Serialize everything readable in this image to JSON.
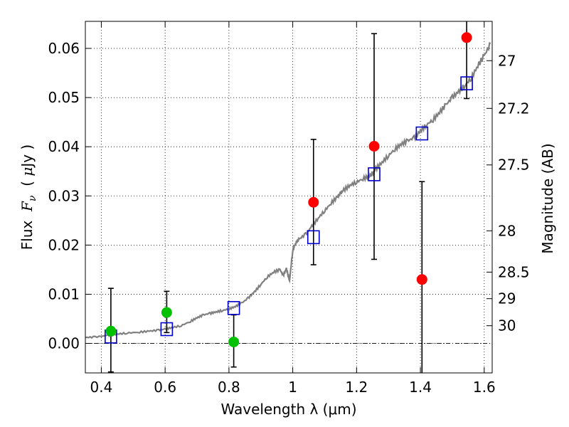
{
  "chart_data": {
    "type": "scatter",
    "xlabel": "Wavelength  λ (μm)",
    "ylabel": "Flux  F_ν  ( μJy )",
    "ylabel_parts": [
      "Flux  ",
      "F",
      "ν",
      "  ( ",
      "μ",
      "Jy )"
    ],
    "y2label": "Magnitude (AB)",
    "xlim": [
      0.35,
      1.625
    ],
    "ylim": [
      -0.006,
      0.0655
    ],
    "grid": true,
    "xticks": [
      0.4,
      0.6,
      0.8,
      1.0,
      1.2,
      1.4,
      1.6
    ],
    "xtick_labels": [
      "0.4",
      "0.6",
      "0.8",
      "1",
      "1.2",
      "1.4",
      "1.6"
    ],
    "yticks": [
      0.0,
      0.01,
      0.02,
      0.03,
      0.04,
      0.05,
      0.06
    ],
    "ytick_labels": [
      "0.00",
      "0.01",
      "0.02",
      "0.03",
      "0.04",
      "0.05",
      "0.06"
    ],
    "mag_ticks": [
      {
        "label": "27",
        "flux": 0.0575
      },
      {
        "label": "27.2",
        "flux": 0.0478
      },
      {
        "label": "27.5",
        "flux": 0.0363
      },
      {
        "label": "28",
        "flux": 0.0229
      },
      {
        "label": "28.5",
        "flux": 0.0145
      },
      {
        "label": "29",
        "flux": 0.0091
      },
      {
        "label": "30",
        "flux": 0.0036
      }
    ],
    "model_spectrum": {
      "color": "#808080",
      "x": [
        0.35,
        0.38,
        0.42,
        0.45,
        0.48,
        0.52,
        0.55,
        0.58,
        0.6,
        0.62,
        0.65,
        0.68,
        0.7,
        0.72,
        0.74,
        0.76,
        0.78,
        0.8,
        0.82,
        0.84,
        0.86,
        0.88,
        0.9,
        0.92,
        0.94,
        0.96,
        0.97,
        0.98,
        0.99,
        1.0,
        1.01,
        1.02,
        1.04,
        1.06,
        1.08,
        1.1,
        1.12,
        1.14,
        1.15,
        1.16,
        1.18,
        1.2,
        1.22,
        1.24,
        1.25,
        1.26,
        1.28,
        1.3,
        1.32,
        1.34,
        1.36,
        1.38,
        1.4,
        1.42,
        1.44,
        1.46,
        1.48,
        1.5,
        1.52,
        1.54,
        1.56,
        1.58,
        1.6,
        1.62
      ],
      "y": [
        0.0012,
        0.0013,
        0.0016,
        0.0019,
        0.0021,
        0.0023,
        0.0025,
        0.0027,
        0.0029,
        0.0032,
        0.0036,
        0.0045,
        0.0052,
        0.0058,
        0.0061,
        0.0064,
        0.0067,
        0.007,
        0.0075,
        0.0082,
        0.0092,
        0.0105,
        0.012,
        0.0135,
        0.0145,
        0.015,
        0.0138,
        0.0152,
        0.0128,
        0.019,
        0.0205,
        0.0212,
        0.0222,
        0.0238,
        0.0255,
        0.027,
        0.0285,
        0.0298,
        0.0305,
        0.0312,
        0.0322,
        0.0328,
        0.0335,
        0.034,
        0.0345,
        0.0355,
        0.0368,
        0.0382,
        0.0395,
        0.0405,
        0.0412,
        0.0418,
        0.0432,
        0.0445,
        0.0455,
        0.047,
        0.0485,
        0.05,
        0.0512,
        0.0525,
        0.054,
        0.0565,
        0.0585,
        0.061
      ]
    },
    "model_points": {
      "color": "#0000cc",
      "x": [
        0.43,
        0.605,
        0.815,
        1.065,
        1.255,
        1.405,
        1.545
      ],
      "y": [
        0.0014,
        0.0029,
        0.0072,
        0.0216,
        0.0344,
        0.0427,
        0.0529
      ]
    },
    "observed_green": {
      "color": "#00c000",
      "x": [
        0.43,
        0.605,
        0.815
      ],
      "y": [
        0.0025,
        0.0063,
        0.0003
      ],
      "yerr_low": [
        -0.0058,
        0.0022,
        -0.0048
      ],
      "yerr_high": [
        0.0112,
        0.0106,
        0.0058
      ]
    },
    "observed_red": {
      "color": "#ff0000",
      "x": [
        1.065,
        1.255,
        1.405,
        1.545
      ],
      "y": [
        0.0287,
        0.0401,
        0.013,
        0.0622
      ],
      "yerr_low": [
        0.016,
        0.0171,
        -0.006,
        0.0498
      ],
      "yerr_high": [
        0.0415,
        0.063,
        0.0329,
        0.0655
      ]
    },
    "zero_line": 0.0
  }
}
